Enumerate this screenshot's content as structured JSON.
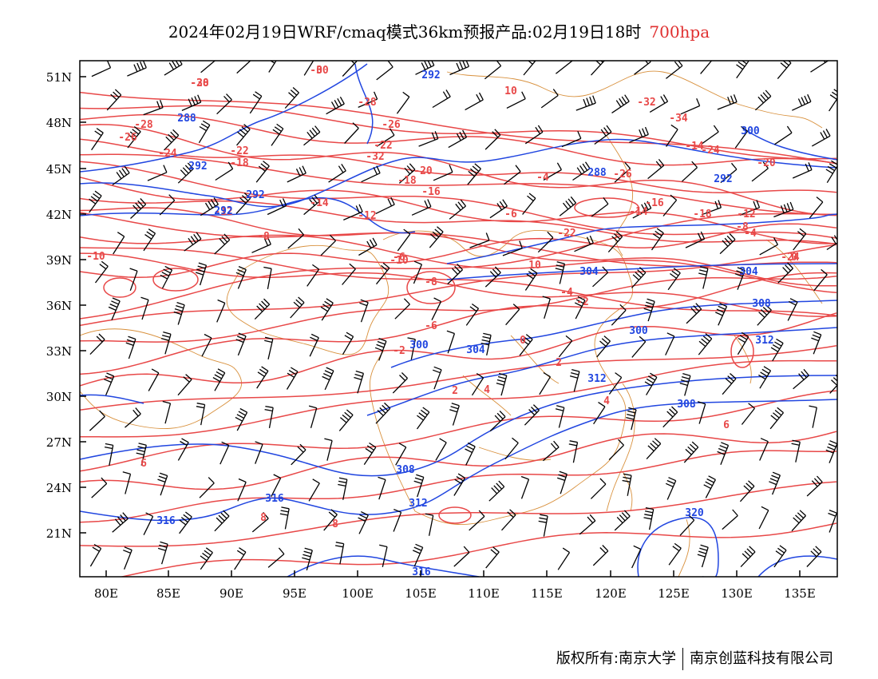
{
  "title": "2024年02月19日WRF/cmaq模式36km预报产品:02月19日18时",
  "level": "700hpa",
  "colors": {
    "temperature": "#e84848",
    "height": "#2146e0",
    "border": "#d8903c",
    "wind": "#000000"
  },
  "axes": {
    "lat_ticks": [
      "51N",
      "48N",
      "45N",
      "42N",
      "39N",
      "36N",
      "33N",
      "30N",
      "27N",
      "24N",
      "21N"
    ],
    "lon_ticks": [
      "80E",
      "85E",
      "90E",
      "95E",
      "100E",
      "105E",
      "110E",
      "115E",
      "120E",
      "125E",
      "130E",
      "135E"
    ]
  },
  "temperature_labels": [
    "-30",
    "-30",
    "-28",
    "-28",
    "-26",
    "-26",
    "-24",
    "-24",
    "-22",
    "-22",
    "-20",
    "-20",
    "-18",
    "-18",
    "-16",
    "-16",
    "-14",
    "-14",
    "-12",
    "-12",
    "-10",
    "-10",
    "-8",
    "-8",
    "-6",
    "-6",
    "-4",
    "-4",
    "-2",
    "-2",
    "0",
    "0",
    "2",
    "2",
    "4",
    "4",
    "6",
    "6",
    "8",
    "8",
    "10",
    "10",
    "-32",
    "-34",
    "-32",
    "-26",
    "-22",
    "-18",
    "-12",
    "-8",
    "-6",
    "-4",
    "-14",
    "-24",
    "-28",
    "0"
  ],
  "height_labels": [
    "292",
    "288",
    "292",
    "292",
    "292",
    "300",
    "304",
    "304",
    "300",
    "308",
    "312",
    "316",
    "308",
    "312",
    "316",
    "320",
    "316",
    "304",
    "308",
    "312",
    "300",
    "292",
    "288"
  ],
  "footer": {
    "left": "版权所有:南京大学",
    "right": "南京创蓝科技有限公司"
  }
}
